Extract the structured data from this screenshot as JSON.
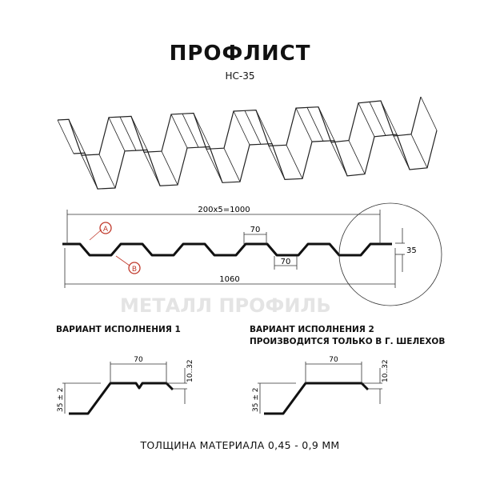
{
  "title": "ПРОФЛИСТ",
  "subtitle": "НС-35",
  "watermark": "МЕТАЛЛ ПРОФИЛЬ",
  "main_drawing": {
    "pitch_dim": "200х5=1000",
    "crest_dim": "70",
    "valley_dim": "70",
    "height_dim": "35",
    "width_dim": "1060",
    "marker_a": "A",
    "marker_b": "B",
    "marker_color": "#c0392b"
  },
  "variant1": {
    "caption": "ВАРИАНТ ИСПОЛНЕНИЯ 1",
    "width_dim": "70",
    "height_dim": "35 ± 2",
    "step_dim": "10..32"
  },
  "variant2": {
    "caption_line1": "ВАРИАНТ ИСПОЛНЕНИЯ 2",
    "caption_line2": "ПРОИЗВОДИТСЯ ТОЛЬКО В Г. ШЕЛЕХОВ",
    "width_dim": "70",
    "height_dim": "35 ± 2",
    "step_dim": "10..32"
  },
  "footer": "ТОЛЩИНА МАТЕРИАЛА 0,45 - 0,9 ММ"
}
